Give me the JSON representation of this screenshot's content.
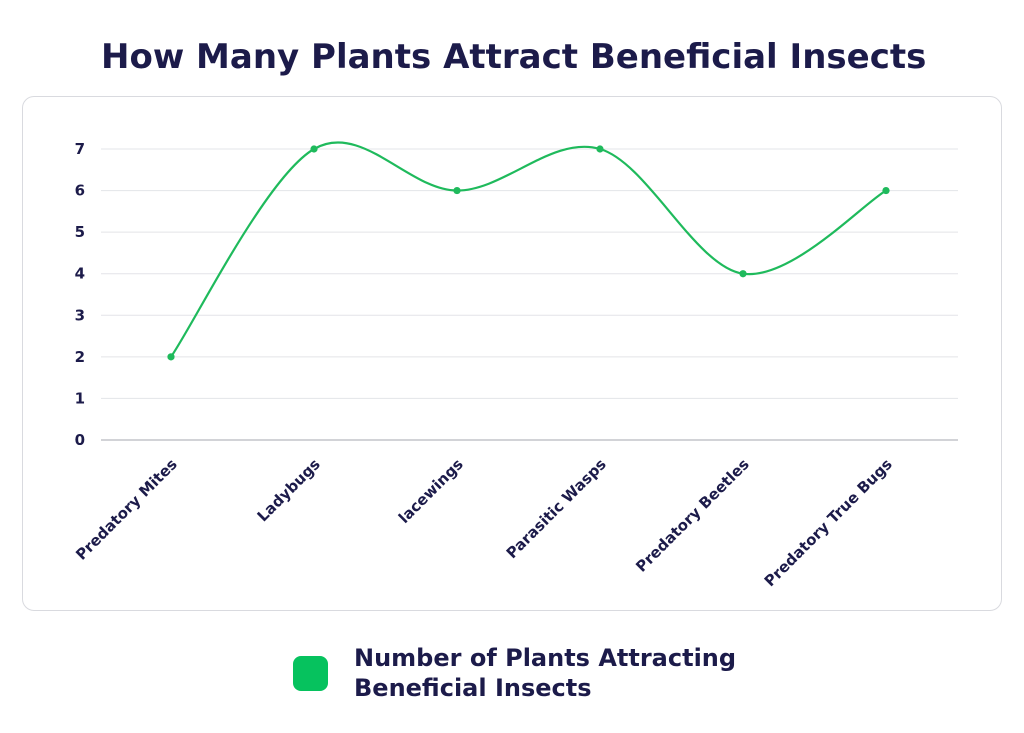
{
  "chart_data": {
    "type": "line",
    "title": "How Many Plants Attract Beneficial Insects",
    "categories": [
      "Predatory Mites",
      "Ladybugs",
      "lacewings",
      "Parasitic Wasps",
      "Predatory Beetles",
      "Predatory True Bugs"
    ],
    "series": [
      {
        "name": "Number of Plants Attracting Beneficial Insects",
        "values": [
          2,
          7,
          6,
          7,
          4,
          6
        ],
        "color": "#1fba5c"
      }
    ],
    "y_ticks": [
      "0",
      "1",
      "2",
      "3",
      "4",
      "5",
      "6",
      "7"
    ],
    "ylim": [
      0,
      7
    ],
    "grid": true,
    "smooth": true,
    "legend_position": "bottom",
    "colors": {
      "line": "#1fba5c",
      "legend_swatch": "#06c25e",
      "gridline": "#e3e4e8",
      "baseline": "#b8b9bf",
      "text": "#1c1b4a"
    }
  }
}
